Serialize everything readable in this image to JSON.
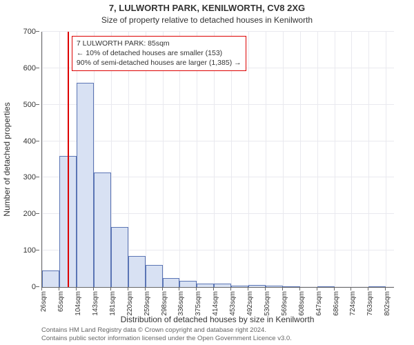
{
  "title_main": "7, LULWORTH PARK, KENILWORTH, CV8 2XG",
  "title_sub": "Size of property relative to detached houses in Kenilworth",
  "yaxis_label": "Number of detached properties",
  "xaxis_label": "Distribution of detached houses by size in Kenilworth",
  "chart": {
    "type": "histogram",
    "background_color": "#ffffff",
    "grid_color": "#e9e9ef",
    "axis_color": "#666666",
    "bar_fill": "#d8e1f3",
    "bar_border": "#5a74b4",
    "marker_color": "#dd0000",
    "legend_border": "#dd0000",
    "ylim": [
      0,
      700
    ],
    "yticks": [
      0,
      100,
      200,
      300,
      400,
      500,
      600,
      700
    ],
    "x_min": 26,
    "x_max": 820,
    "xticks": [
      26,
      65,
      104,
      143,
      181,
      220,
      259,
      298,
      336,
      375,
      414,
      453,
      492,
      530,
      569,
      608,
      647,
      686,
      724,
      763,
      802
    ],
    "xtick_labels": [
      "26sqm",
      "65sqm",
      "104sqm",
      "143sqm",
      "181sqm",
      "220sqm",
      "259sqm",
      "298sqm",
      "336sqm",
      "375sqm",
      "414sqm",
      "453sqm",
      "492sqm",
      "530sqm",
      "569sqm",
      "608sqm",
      "647sqm",
      "686sqm",
      "724sqm",
      "763sqm",
      "802sqm"
    ],
    "marker_value": 85,
    "bars": [
      {
        "x0": 26,
        "x1": 65,
        "y": 45
      },
      {
        "x0": 65,
        "x1": 104,
        "y": 360
      },
      {
        "x0": 104,
        "x1": 143,
        "y": 560
      },
      {
        "x0": 143,
        "x1": 181,
        "y": 315
      },
      {
        "x0": 181,
        "x1": 220,
        "y": 165
      },
      {
        "x0": 220,
        "x1": 259,
        "y": 85
      },
      {
        "x0": 259,
        "x1": 298,
        "y": 60
      },
      {
        "x0": 298,
        "x1": 336,
        "y": 25
      },
      {
        "x0": 336,
        "x1": 375,
        "y": 17
      },
      {
        "x0": 375,
        "x1": 414,
        "y": 10
      },
      {
        "x0": 414,
        "x1": 453,
        "y": 9
      },
      {
        "x0": 453,
        "x1": 492,
        "y": 3
      },
      {
        "x0": 492,
        "x1": 530,
        "y": 6
      },
      {
        "x0": 530,
        "x1": 569,
        "y": 3
      },
      {
        "x0": 569,
        "x1": 608,
        "y": 2
      },
      {
        "x0": 608,
        "x1": 647,
        "y": 0
      },
      {
        "x0": 647,
        "x1": 686,
        "y": 2
      },
      {
        "x0": 686,
        "x1": 724,
        "y": 0
      },
      {
        "x0": 724,
        "x1": 763,
        "y": 0
      },
      {
        "x0": 763,
        "x1": 802,
        "y": 2
      }
    ]
  },
  "legend": {
    "line1": "7 LULWORTH PARK: 85sqm",
    "line2": "← 10% of detached houses are smaller (153)",
    "line3": "90% of semi-detached houses are larger (1,385) →"
  },
  "footer_line1": "Contains HM Land Registry data © Crown copyright and database right 2024.",
  "footer_line2": "Contains public sector information licensed under the Open Government Licence v3.0.",
  "fonts": {
    "title_main_pt": 13,
    "title_sub_pt": 12,
    "axis_label_pt": 12,
    "tick_pt": 11,
    "xtick_pt": 10,
    "legend_pt": 10.5,
    "footer_pt": 9.5
  }
}
